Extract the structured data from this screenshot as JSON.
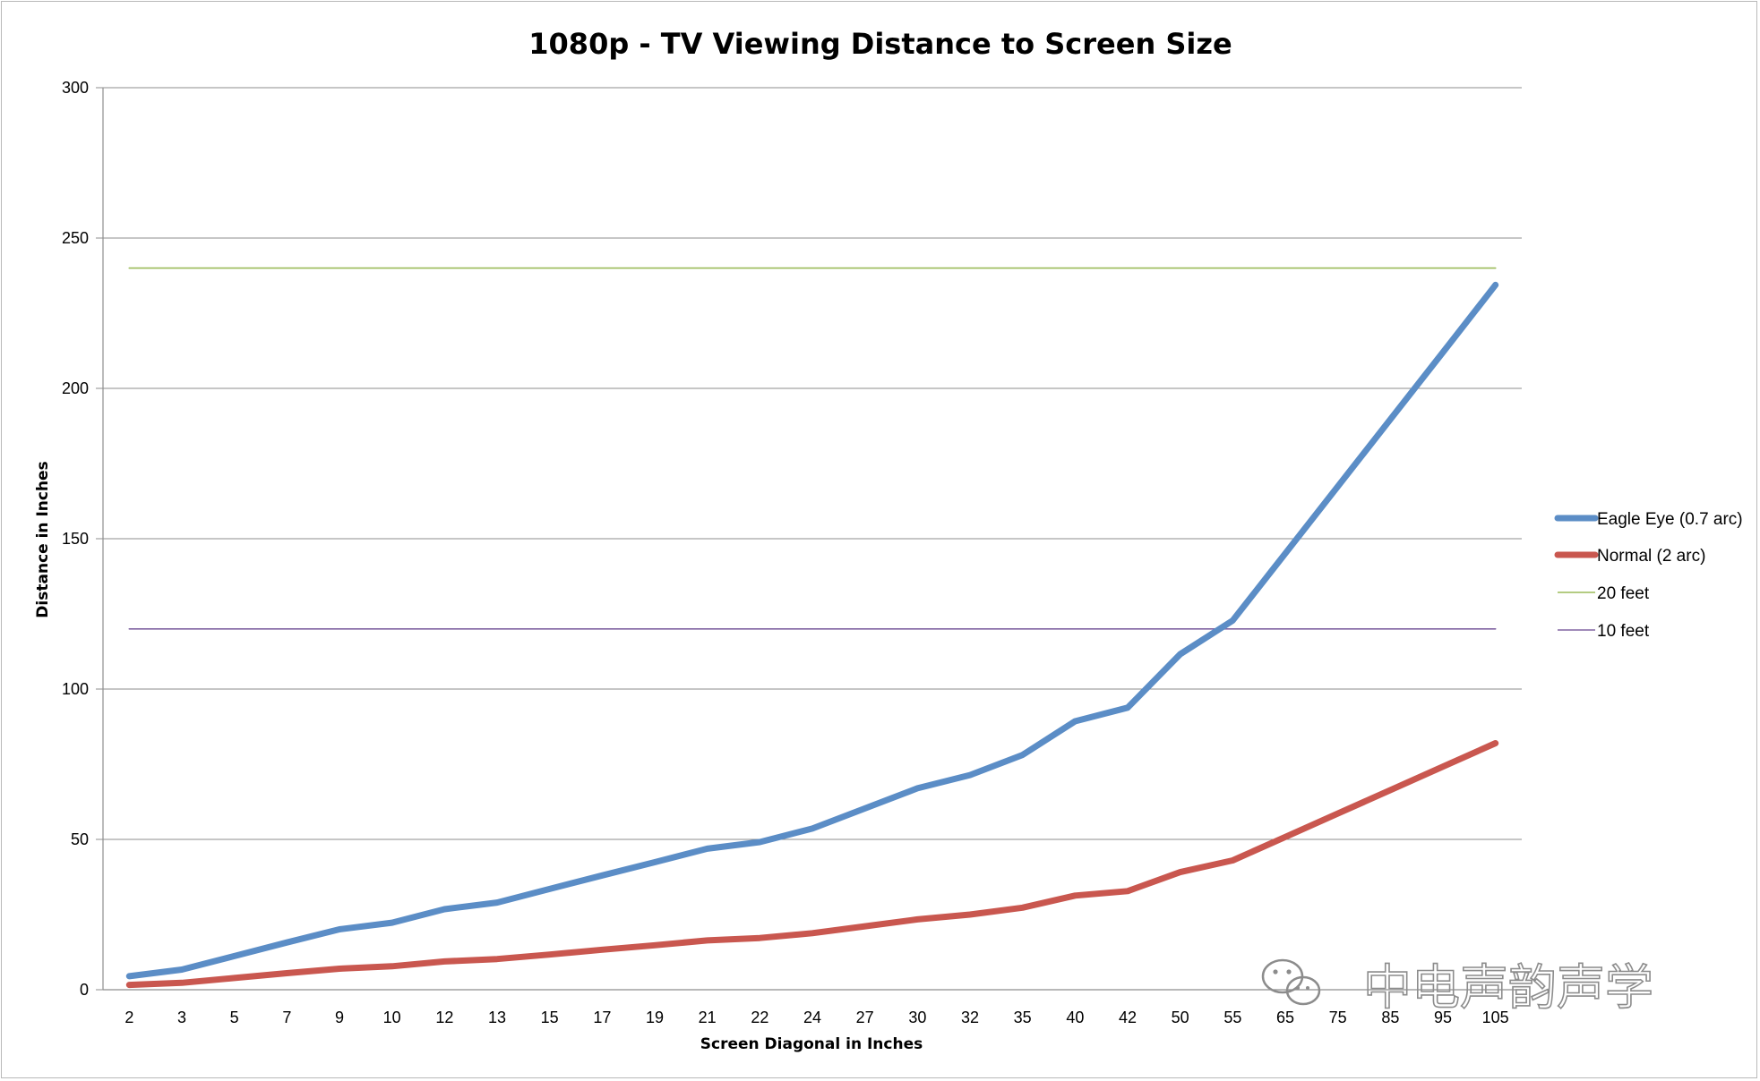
{
  "chart_data": {
    "type": "line",
    "title": "1080p - TV Viewing Distance to Screen Size",
    "xlabel": "Screen Diagonal in Inches",
    "ylabel": "Distance in Inches",
    "categories": [
      "2",
      "3",
      "5",
      "7",
      "9",
      "10",
      "12",
      "13",
      "15",
      "17",
      "19",
      "21",
      "22",
      "24",
      "27",
      "30",
      "32",
      "35",
      "40",
      "42",
      "50",
      "55",
      "65",
      "75",
      "85",
      "95",
      "105"
    ],
    "ylim": [
      0,
      300
    ],
    "yticks": [
      0,
      50,
      100,
      150,
      200,
      250,
      300
    ],
    "grid": true,
    "legend_position": "right",
    "series": [
      {
        "name": "Eagle Eye (0.7 arc)",
        "color": "#5b8dc6",
        "values": [
          4.5,
          6.7,
          11.2,
          15.7,
          20.1,
          22.3,
          26.8,
          29.0,
          33.5,
          38.0,
          42.4,
          46.9,
          49.1,
          53.6,
          60.3,
          67.0,
          71.4,
          78.1,
          89.3,
          93.8,
          111.6,
          122.8,
          145.1,
          167.4,
          189.7,
          212.0,
          234.4
        ]
      },
      {
        "name": "Normal (2 arc)",
        "color": "#c9574f",
        "values": [
          1.6,
          2.3,
          3.9,
          5.5,
          7.0,
          7.8,
          9.4,
          10.2,
          11.7,
          13.3,
          14.8,
          16.4,
          17.2,
          18.8,
          21.1,
          23.4,
          25.0,
          27.3,
          31.3,
          32.8,
          39.1,
          43.0,
          50.8,
          58.6,
          66.4,
          74.2,
          82.0
        ]
      },
      {
        "name": "20 feet",
        "color": "#9bbb59",
        "values": [
          240,
          240,
          240,
          240,
          240,
          240,
          240,
          240,
          240,
          240,
          240,
          240,
          240,
          240,
          240,
          240,
          240,
          240,
          240,
          240,
          240,
          240,
          240,
          240,
          240,
          240,
          240
        ]
      },
      {
        "name": "10 feet",
        "color": "#8064a2",
        "values": [
          120,
          120,
          120,
          120,
          120,
          120,
          120,
          120,
          120,
          120,
          120,
          120,
          120,
          120,
          120,
          120,
          120,
          120,
          120,
          120,
          120,
          120,
          120,
          120,
          120,
          120,
          120
        ]
      }
    ]
  },
  "watermark": {
    "text": "中电声韵声学",
    "icon": "wechat-icon"
  }
}
